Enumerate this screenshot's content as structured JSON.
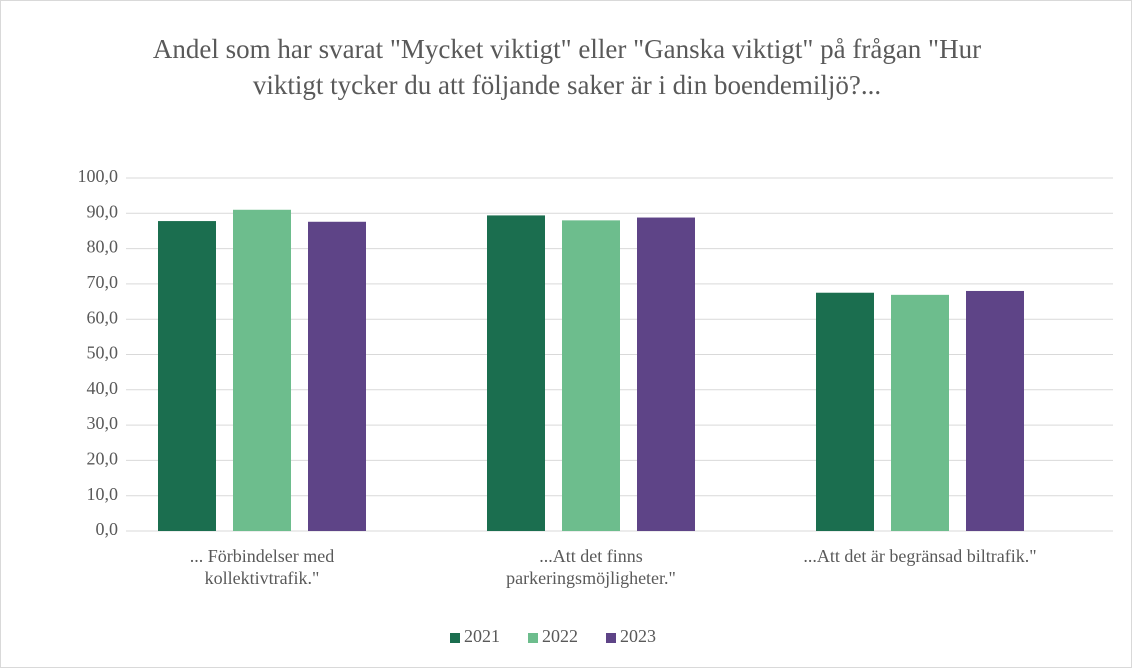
{
  "chart_data": {
    "type": "bar",
    "title": "Andel som har svarat \"Mycket viktigt\" eller \"Ganska viktigt\" på frågan \"Hur viktigt tycker du att följande saker är i din boendemiljö?...",
    "categories": [
      "... Förbindelser med kollektivtrafik.\"",
      "...Att det finns parkeringsmöjligheter.\"",
      "...Att det är begränsad biltrafik.\""
    ],
    "series": [
      {
        "name": "2021",
        "color": "#1b6e4f",
        "values": [
          87.8,
          89.4,
          67.5
        ]
      },
      {
        "name": "2022",
        "color": "#6dbd8d",
        "values": [
          91.0,
          88.0,
          66.9
        ]
      },
      {
        "name": "2023",
        "color": "#5e4487",
        "values": [
          87.6,
          88.8,
          68.0
        ]
      }
    ],
    "ylim": [
      0,
      100
    ],
    "yticks": [
      {
        "value": 0,
        "label": "0,0"
      },
      {
        "value": 10,
        "label": "10,0"
      },
      {
        "value": 20,
        "label": "20,0"
      },
      {
        "value": 30,
        "label": "30,0"
      },
      {
        "value": 40,
        "label": "40,0"
      },
      {
        "value": 50,
        "label": "50,0"
      },
      {
        "value": 60,
        "label": "60,0"
      },
      {
        "value": 70,
        "label": "70,0"
      },
      {
        "value": 80,
        "label": "80,0"
      },
      {
        "value": 90,
        "label": "90,0"
      },
      {
        "value": 100,
        "label": "100,0"
      }
    ],
    "grid": true,
    "legend": "bottom"
  }
}
